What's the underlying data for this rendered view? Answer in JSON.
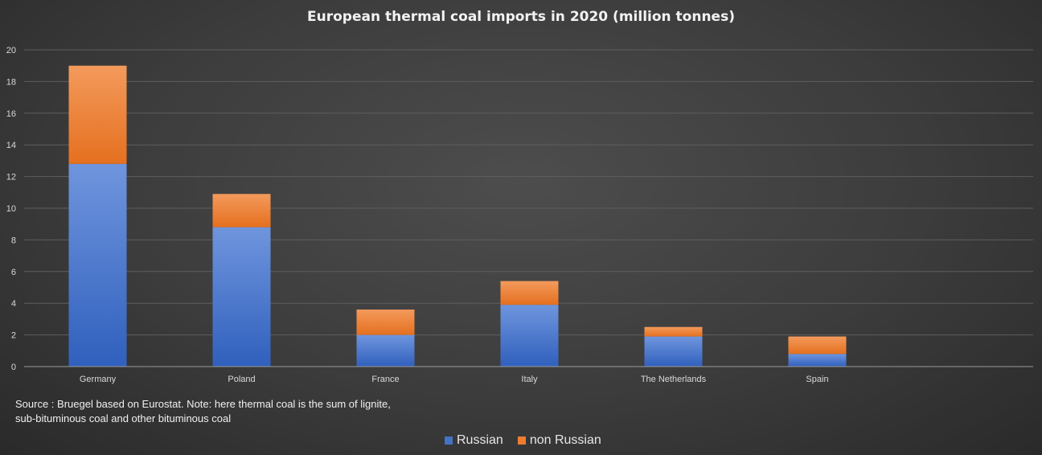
{
  "chart_data": {
    "type": "bar",
    "stacked": true,
    "title": "European thermal coal imports in 2020 (million tonnes)",
    "categories": [
      "Germany",
      "Poland",
      "France",
      "Italy",
      "The Netherlands",
      "Spain"
    ],
    "series": [
      {
        "name": "Russian",
        "values": [
          12.8,
          8.8,
          2.0,
          3.9,
          1.9,
          0.8
        ],
        "color": "#4472c4"
      },
      {
        "name": "non Russian",
        "values": [
          6.2,
          2.1,
          1.6,
          1.5,
          0.6,
          1.1
        ],
        "color": "#ed7d31"
      }
    ],
    "yticks": [
      "0",
      "2",
      "4",
      "6",
      "8",
      "10",
      "12",
      "14",
      "16",
      "18",
      "20"
    ],
    "ylim": [
      0,
      20
    ],
    "grid": true,
    "legend_position": "bottom"
  },
  "note": {
    "line1": "Source : Bruegel based on Eurostat. Note: here thermal coal is the sum of lignite,",
    "line2": "sub-bituminous coal and other bituminous coal"
  }
}
